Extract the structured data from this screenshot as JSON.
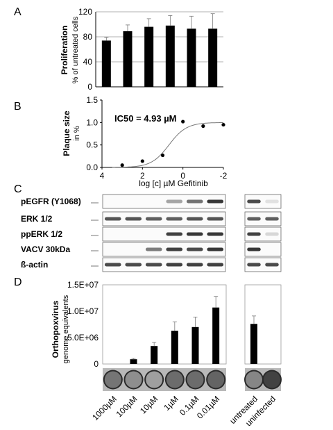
{
  "panels": {
    "A": "A",
    "B": "B",
    "C": "C",
    "D": "D"
  },
  "chart_data": [
    {
      "type": "bar",
      "panel": "A",
      "ylabel": "Proliferation",
      "ylabel2": "% of untreated cells",
      "ylim": [
        0,
        120
      ],
      "yticks": [
        "0",
        "40",
        "80",
        "120"
      ],
      "values": [
        74,
        89,
        96,
        98,
        93,
        93
      ],
      "errors": [
        5,
        10,
        13,
        16,
        20,
        24
      ],
      "grid": true
    },
    {
      "type": "scatter",
      "panel": "B",
      "ylabel": "Plaque size",
      "ylabel2": "in %",
      "xlabel": "log [c] µM Gefitinib",
      "annotation": "IC50 = 4.93 µM",
      "xlim": [
        4,
        -2
      ],
      "ylim": [
        0,
        1.5
      ],
      "xticks": [
        "4",
        "2",
        "0",
        "-2"
      ],
      "yticks": [
        "0.0",
        "0.5",
        "1.0",
        "1.5"
      ],
      "points": [
        {
          "x": 3,
          "y": 0.05
        },
        {
          "x": 2,
          "y": 0.14
        },
        {
          "x": 1,
          "y": 0.27
        },
        {
          "x": 0,
          "y": 1.02
        },
        {
          "x": -1,
          "y": 0.92
        },
        {
          "x": -2,
          "y": 0.95
        }
      ],
      "fit": {
        "bottom": 0.0,
        "top": 1.0,
        "log_ic50": 0.69,
        "hill": 1.0
      }
    },
    {
      "type": "bar",
      "panel": "D",
      "ylabel": "Orthopoxvirus",
      "ylabel2": "genome equivalents",
      "ylim": [
        0,
        15000000
      ],
      "yticks": [
        "0",
        "5.0E+06",
        "1.0E+07",
        "1.5E+07"
      ],
      "categories": [
        "1000µM",
        "100µM",
        "10µM",
        "1µM",
        "0.1µM",
        "0.01µM",
        "untreated",
        "uninfected"
      ],
      "values": [
        0,
        900000,
        3400000,
        6300000,
        7000000,
        10700000,
        7600000,
        0
      ],
      "errors": [
        0,
        150000,
        700000,
        1700000,
        1900000,
        2100000,
        1500000,
        0
      ]
    }
  ],
  "blot": {
    "labels": [
      "pEGFR (Y1068)",
      "ERK 1/2",
      "ppERK 1/2",
      "VACV 30kDa",
      "ß-actin"
    ],
    "band_intensity": [
      [
        0,
        0,
        0,
        0.35,
        0.6,
        0.9,
        0.8,
        0.05
      ],
      [
        0.75,
        0.75,
        0.7,
        0.7,
        0.75,
        0.75,
        0.7,
        0.7
      ],
      [
        0,
        0,
        0,
        0.85,
        0.9,
        0.9,
        0.85,
        0.1
      ],
      [
        0,
        0,
        0.55,
        0.85,
        0.8,
        0.9,
        0.9,
        0
      ],
      [
        0.8,
        0.8,
        0.8,
        0.85,
        0.85,
        0.85,
        0.8,
        0.8
      ]
    ]
  },
  "wells": {
    "tone": [
      0.45,
      0.6,
      0.7,
      0.4,
      0.4,
      0.35,
      0.55,
      0.15
    ]
  }
}
